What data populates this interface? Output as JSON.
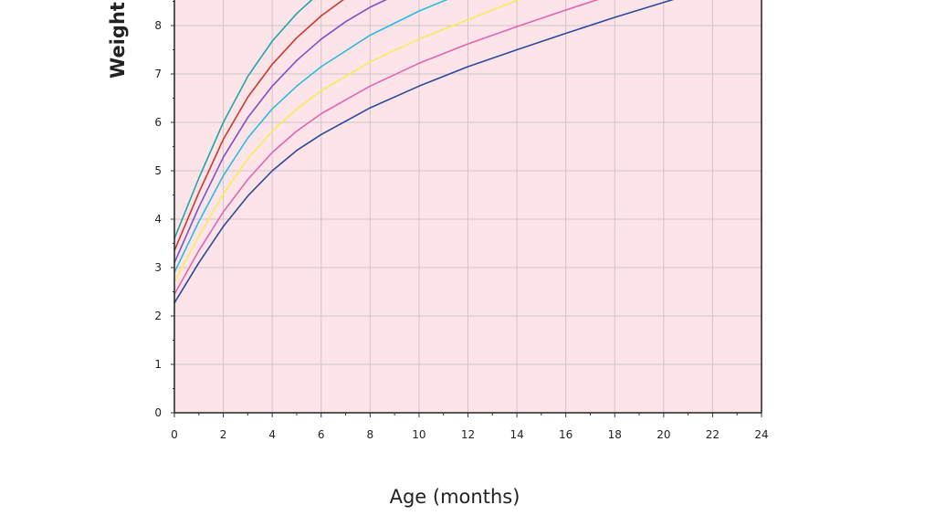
{
  "chart_data": {
    "type": "line",
    "title": "",
    "xlabel": "Age (months)",
    "ylabel": "Weight",
    "xlim": [
      0,
      24
    ],
    "ylim": [
      0,
      8.6
    ],
    "xticks": [
      "0",
      "2",
      "4",
      "6",
      "8",
      "10",
      "12",
      "14",
      "16",
      "18",
      "20",
      "22",
      "24"
    ],
    "yticks": [
      "0",
      "1",
      "2",
      "3",
      "4",
      "5",
      "6",
      "7",
      "8"
    ],
    "grid": true,
    "plot_background": "#fde4e8",
    "series": [
      {
        "color": "#2a4a9e",
        "x": [
          0,
          1,
          2,
          3,
          4,
          5,
          6,
          8,
          10,
          12,
          14,
          16,
          18,
          20,
          20.6
        ],
        "y": [
          2.27,
          3.1,
          3.85,
          4.48,
          5.0,
          5.42,
          5.75,
          6.3,
          6.75,
          7.15,
          7.5,
          7.84,
          8.17,
          8.48,
          8.57
        ]
      },
      {
        "color": "#e264b4",
        "x": [
          0,
          1,
          2,
          3,
          4,
          5,
          6,
          8,
          10,
          12,
          14,
          16,
          17.5
        ],
        "y": [
          2.45,
          3.35,
          4.15,
          4.82,
          5.38,
          5.82,
          6.18,
          6.75,
          7.22,
          7.62,
          7.98,
          8.32,
          8.57
        ]
      },
      {
        "color": "#f7ec5c",
        "x": [
          0,
          1,
          2,
          3,
          4,
          5,
          6,
          8,
          10,
          12,
          14,
          14.3
        ],
        "y": [
          2.7,
          3.65,
          4.52,
          5.25,
          5.82,
          6.28,
          6.65,
          7.25,
          7.72,
          8.12,
          8.52,
          8.57
        ]
      },
      {
        "color": "#2cbbe0",
        "x": [
          0,
          1,
          2,
          3,
          4,
          5,
          6,
          8,
          10,
          11.3
        ],
        "y": [
          2.9,
          3.95,
          4.9,
          5.68,
          6.28,
          6.75,
          7.15,
          7.8,
          8.3,
          8.57
        ]
      },
      {
        "color": "#7b52c6",
        "x": [
          0,
          1,
          2,
          3,
          4,
          5,
          6,
          7,
          8,
          8.8
        ],
        "y": [
          3.1,
          4.25,
          5.28,
          6.1,
          6.75,
          7.28,
          7.72,
          8.08,
          8.38,
          8.57
        ]
      },
      {
        "color": "#c93a2e",
        "x": [
          0,
          1,
          2,
          3,
          4,
          5,
          6,
          7
        ],
        "y": [
          3.35,
          4.55,
          5.65,
          6.52,
          7.2,
          7.75,
          8.2,
          8.57
        ]
      },
      {
        "color": "#21a6a6",
        "x": [
          0,
          1,
          2,
          3,
          4,
          5,
          5.7
        ],
        "y": [
          3.6,
          4.85,
          6.0,
          6.95,
          7.68,
          8.25,
          8.57
        ]
      }
    ]
  }
}
